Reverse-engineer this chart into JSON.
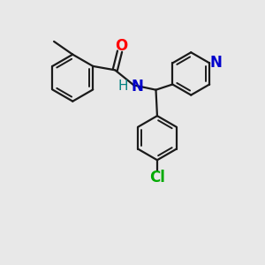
{
  "background_color": "#e8e8e8",
  "bond_color": "#1a1a1a",
  "atom_colors": {
    "O": "#ff0000",
    "N_amide": "#0000cc",
    "N_pyridine": "#0000cc",
    "H": "#008080",
    "Cl": "#00aa00"
  },
  "figsize": [
    3.0,
    3.0
  ],
  "dpi": 100,
  "xlim": [
    0,
    10
  ],
  "ylim": [
    0,
    10
  ]
}
